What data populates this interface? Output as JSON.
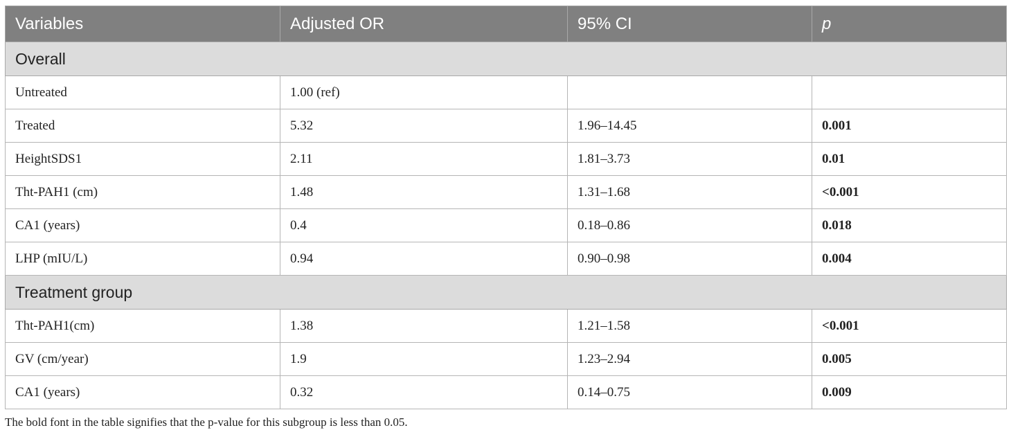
{
  "table": {
    "headers": [
      "Variables",
      "Adjusted OR",
      "95% CI",
      "p"
    ],
    "groups": [
      {
        "label": "Overall",
        "rows": [
          {
            "variable": "Untreated",
            "or": "1.00 (ref)",
            "ci": "",
            "p": ""
          },
          {
            "variable": "Treated",
            "or": "5.32",
            "ci": "1.96–14.45",
            "p": "0.001"
          },
          {
            "variable": "HeightSDS1",
            "or": "2.11",
            "ci": "1.81–3.73",
            "p": "0.01"
          },
          {
            "variable": "Tht-PAH1 (cm)",
            "or": "1.48",
            "ci": "1.31–1.68",
            "p": "<0.001"
          },
          {
            "variable": "CA1 (years)",
            "or": "0.4",
            "ci": "0.18–0.86",
            "p": "0.018"
          },
          {
            "variable": "LHP (mIU/L)",
            "or": "0.94",
            "ci": "0.90–0.98",
            "p": "0.004"
          }
        ]
      },
      {
        "label": "Treatment group",
        "rows": [
          {
            "variable": "Tht-PAH1(cm)",
            "or": "1.38",
            "ci": "1.21–1.58",
            "p": "<0.001"
          },
          {
            "variable": "GV (cm/year)",
            "or": "1.9",
            "ci": "1.23–2.94",
            "p": "0.005"
          },
          {
            "variable": "CA1 (years)",
            "or": "0.32",
            "ci": "0.14–0.75",
            "p": "0.009"
          }
        ]
      }
    ]
  },
  "footnote": "The bold font in the table signifies that the p-value for this subgroup is less than 0.05."
}
